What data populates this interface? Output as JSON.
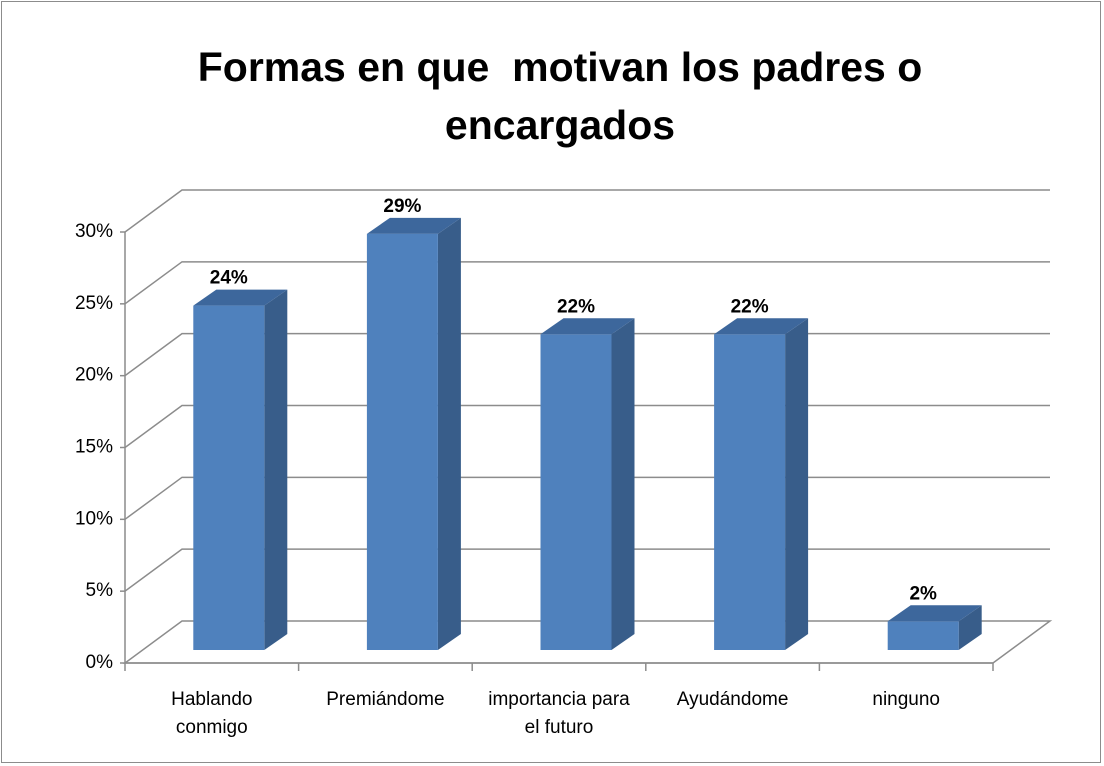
{
  "chart_data": {
    "type": "bar3d",
    "title": "Formas en que  motivan los padres o encargados",
    "categories": [
      "Hablando conmigo",
      "Premiándome",
      "importancia para el futuro",
      "Ayudándome",
      "ninguno"
    ],
    "values": [
      24,
      29,
      22,
      22,
      2
    ],
    "value_labels": [
      "24%",
      "29%",
      "22%",
      "22%",
      "2%"
    ],
    "color": "#4f81bd",
    "ylim": [
      0,
      30
    ],
    "yticks": [
      {
        "value": 0,
        "label": "0%"
      },
      {
        "value": 5,
        "label": "5%"
      },
      {
        "value": 10,
        "label": "10%"
      },
      {
        "value": 15,
        "label": "15%"
      },
      {
        "value": 20,
        "label": "20%"
      },
      {
        "value": 25,
        "label": "25%"
      },
      {
        "value": 30,
        "label": "30%"
      }
    ],
    "grid": true
  }
}
